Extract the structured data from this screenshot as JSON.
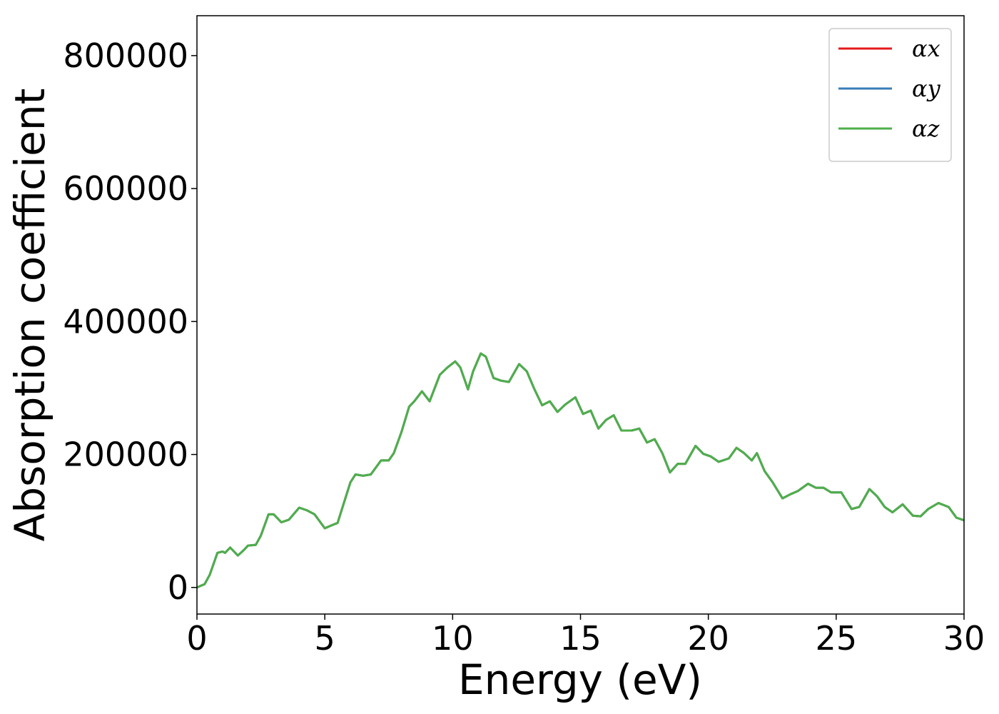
{
  "chart_data": {
    "type": "line",
    "xlabel": "Energy (eV)",
    "ylabel": "Absorption coefficient",
    "x": [
      0,
      0.3,
      0.5,
      0.8,
      1.0,
      1.1,
      1.3,
      1.6,
      1.8,
      2.0,
      2.3,
      2.5,
      2.8,
      3.0,
      3.3,
      3.6,
      4.0,
      4.3,
      4.6,
      5.0,
      5.3,
      5.5,
      6.0,
      6.2,
      6.5,
      6.8,
      7.2,
      7.5,
      7.7,
      8.0,
      8.3,
      8.5,
      8.8,
      9.1,
      9.5,
      9.8,
      10.1,
      10.3,
      10.6,
      10.8,
      11.1,
      11.3,
      11.6,
      11.9,
      12.2,
      12.6,
      12.9,
      13.2,
      13.5,
      13.8,
      14.1,
      14.4,
      14.8,
      15.1,
      15.4,
      15.7,
      16.0,
      16.3,
      16.6,
      17.0,
      17.3,
      17.6,
      17.9,
      18.2,
      18.5,
      18.8,
      19.1,
      19.5,
      19.8,
      20.1,
      20.4,
      20.8,
      21.1,
      21.4,
      21.7,
      21.9,
      22.2,
      22.5,
      22.9,
      23.2,
      23.5,
      23.9,
      24.2,
      24.5,
      24.8,
      25.2,
      25.6,
      25.9,
      26.3,
      26.6,
      26.9,
      27.2,
      27.6,
      28.0,
      28.3,
      28.6,
      29.0,
      29.4,
      29.7,
      30
    ],
    "series": [
      {
        "name": "αx",
        "color": "#e41a1c",
        "values": [
          0,
          5000,
          19000,
          52000,
          54000,
          52000,
          60000,
          48000,
          55000,
          63000,
          64000,
          78000,
          110000,
          110000,
          98000,
          102000,
          120000,
          116000,
          110000,
          89000,
          94000,
          97000,
          158000,
          170000,
          168000,
          170000,
          191000,
          191000,
          202000,
          234000,
          272000,
          280000,
          295000,
          280000,
          320000,
          331000,
          340000,
          331000,
          298000,
          325000,
          352000,
          347000,
          315000,
          311000,
          309000,
          336000,
          325000,
          298000,
          274000,
          280000,
          264000,
          275000,
          286000,
          261000,
          266000,
          239000,
          252000,
          259000,
          236000,
          236000,
          239000,
          218000,
          223000,
          202000,
          173000,
          186000,
          186000,
          213000,
          201000,
          197000,
          189000,
          194000,
          210000,
          202000,
          191000,
          202000,
          175000,
          159000,
          134000,
          140000,
          145000,
          156000,
          150000,
          150000,
          143000,
          143000,
          118000,
          121000,
          148000,
          137000,
          121000,
          113000,
          125000,
          108000,
          107000,
          118000,
          127000,
          121000,
          105000,
          101000
        ]
      },
      {
        "name": "αy",
        "color": "#377eb8",
        "values": [
          0,
          5000,
          19000,
          52000,
          54000,
          52000,
          60000,
          48000,
          55000,
          63000,
          64000,
          78000,
          110000,
          110000,
          98000,
          102000,
          120000,
          116000,
          110000,
          89000,
          94000,
          97000,
          158000,
          170000,
          168000,
          170000,
          191000,
          191000,
          202000,
          234000,
          272000,
          280000,
          295000,
          280000,
          320000,
          331000,
          340000,
          331000,
          298000,
          325000,
          352000,
          347000,
          315000,
          311000,
          309000,
          336000,
          325000,
          298000,
          274000,
          280000,
          264000,
          275000,
          286000,
          261000,
          266000,
          239000,
          252000,
          259000,
          236000,
          236000,
          239000,
          218000,
          223000,
          202000,
          173000,
          186000,
          186000,
          213000,
          201000,
          197000,
          189000,
          194000,
          210000,
          202000,
          191000,
          202000,
          175000,
          159000,
          134000,
          140000,
          145000,
          156000,
          150000,
          150000,
          143000,
          143000,
          118000,
          121000,
          148000,
          137000,
          121000,
          113000,
          125000,
          108000,
          107000,
          118000,
          127000,
          121000,
          105000,
          101000
        ]
      },
      {
        "name": "αz",
        "color": "#4daf4a",
        "values": [
          0,
          5000,
          19000,
          52000,
          54000,
          52000,
          60000,
          48000,
          55000,
          63000,
          64000,
          78000,
          110000,
          110000,
          98000,
          102000,
          120000,
          116000,
          110000,
          89000,
          94000,
          97000,
          158000,
          170000,
          168000,
          170000,
          191000,
          191000,
          202000,
          234000,
          272000,
          280000,
          295000,
          280000,
          320000,
          331000,
          340000,
          331000,
          298000,
          325000,
          352000,
          347000,
          315000,
          311000,
          309000,
          336000,
          325000,
          298000,
          274000,
          280000,
          264000,
          275000,
          286000,
          261000,
          266000,
          239000,
          252000,
          259000,
          236000,
          236000,
          239000,
          218000,
          223000,
          202000,
          173000,
          186000,
          186000,
          213000,
          201000,
          197000,
          189000,
          194000,
          210000,
          202000,
          191000,
          202000,
          175000,
          159000,
          134000,
          140000,
          145000,
          156000,
          150000,
          150000,
          143000,
          143000,
          118000,
          121000,
          148000,
          137000,
          121000,
          113000,
          125000,
          108000,
          107000,
          118000,
          127000,
          121000,
          105000,
          101000
        ]
      }
    ],
    "xlim": [
      0,
      30
    ],
    "xticks": [
      0,
      5,
      10,
      15,
      20,
      25,
      30
    ],
    "ylim": [
      -40000,
      860000
    ],
    "yticks": [
      0,
      200000,
      400000,
      600000,
      800000
    ],
    "grid": false,
    "legend": "upper right"
  }
}
